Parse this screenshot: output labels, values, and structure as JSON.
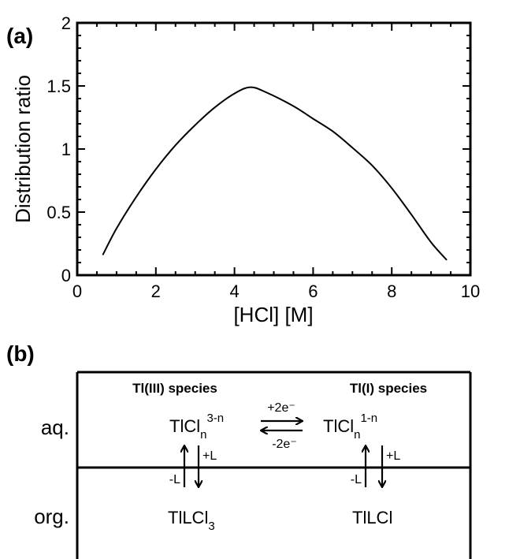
{
  "panel_a": {
    "label": "(a)",
    "chart_data": {
      "type": "line",
      "title": "",
      "xlabel": "[HCl] [M]",
      "ylabel": "Distribution ratio",
      "xlim": [
        0,
        10
      ],
      "ylim": [
        0,
        2
      ],
      "x_ticks": [
        "0",
        "2",
        "4",
        "6",
        "8",
        "10"
      ],
      "y_ticks": [
        "0",
        "0.5",
        "1",
        "1.5",
        "2"
      ],
      "grid": false,
      "legend": "none",
      "series": [
        {
          "x": [
            0.65,
            1.0,
            1.5,
            2.0,
            2.5,
            3.0,
            3.5,
            4.0,
            4.4,
            4.8,
            5.5,
            6.0,
            6.5,
            7.0,
            7.5,
            8.0,
            8.5,
            9.0,
            9.4
          ],
          "y": [
            0.16,
            0.37,
            0.62,
            0.84,
            1.03,
            1.19,
            1.33,
            1.44,
            1.49,
            1.45,
            1.34,
            1.24,
            1.14,
            1.01,
            0.87,
            0.69,
            0.48,
            0.26,
            0.12
          ]
        }
      ]
    }
  },
  "panel_b": {
    "label": "(b)",
    "phase_aq": "aq.",
    "phase_org": "org.",
    "header_left": "Tl(III) species",
    "header_right": "Tl(I) species",
    "species": {
      "aq_left_main": "TlCl",
      "aq_left_sub": "n",
      "aq_left_sup": "3-n",
      "aq_right_main": "TlCl",
      "aq_right_sub": "n",
      "aq_right_sup": "1-n",
      "org_left_main": "TlLCl",
      "org_left_sub": "3",
      "org_right": "TlLCl"
    },
    "redox_forward": "+2e⁻",
    "redox_backward": "-2e⁻",
    "plus_l": "+L",
    "minus_l": "-L"
  }
}
